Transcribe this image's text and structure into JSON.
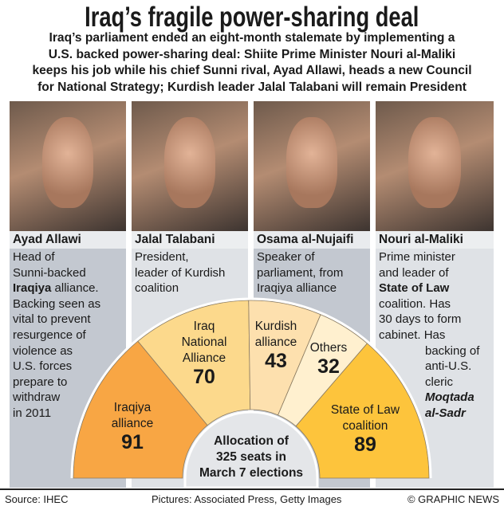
{
  "title": "Iraq’s fragile power-sharing deal",
  "subtitle_lines": [
    "Iraq’s parliament ended an eight-month stalemate by implementing a",
    "U.S. backed power-sharing deal: Shiite Prime Minister Nouri al-Maliki",
    "keeps his job while his chief Sunni rival, Ayad Allawi, heads a new Council",
    "for National Strategy; Kurdish leader Jalal Talabani will remain President"
  ],
  "people": [
    {
      "name": "Ayad Allawi",
      "lines": [
        "Head of",
        "Sunni-backed",
        "Iraqiya",
        " alliance.",
        "Backing seen as",
        "vital to prevent",
        "resurgence of",
        "violence as",
        "U.S. forces",
        "prepare to",
        "withdraw",
        "in 2011"
      ]
    },
    {
      "name": "Jalal Talabani",
      "lines": [
        "President,",
        "leader of Kurdish",
        "coalition"
      ]
    },
    {
      "name": "Osama al-Nujaifi",
      "lines": [
        "Speaker of",
        "parliament, from",
        "Iraqiya alliance"
      ]
    },
    {
      "name": "Nouri al-Maliki",
      "lines": [
        "Prime minister",
        "and leader of",
        "State of Law",
        "coalition. Has",
        "30 days to form",
        "cabinet. Has",
        "backing of",
        "anti-U.S.",
        "cleric",
        "Moqtada",
        "al-Sadr"
      ]
    }
  ],
  "chart_data": {
    "type": "pie",
    "shape": "half-donut",
    "center_label": [
      "Allocation of",
      "325 seats in",
      "March 7 elections"
    ],
    "total": 325,
    "categories": [
      "Iraqiya alliance",
      "Iraq National Alliance",
      "Kurdish alliance",
      "Others",
      "State of Law coalition"
    ],
    "label_lines": [
      [
        "Iraqiya",
        "alliance"
      ],
      [
        "Iraq",
        "National",
        "Alliance"
      ],
      [
        "Kurdish",
        "alliance"
      ],
      [
        "Others"
      ],
      [
        "State of Law",
        "coalition"
      ]
    ],
    "values": [
      91,
      70,
      43,
      32,
      89
    ],
    "colors": [
      "#f8a644",
      "#fcd98c",
      "#fde0ae",
      "#fff0cf",
      "#fdc43c"
    ]
  },
  "footer": {
    "source": "Source: IHEC",
    "pictures": "Pictures: Associated Press, Getty Images",
    "credit": "© GRAPHIC NEWS"
  }
}
